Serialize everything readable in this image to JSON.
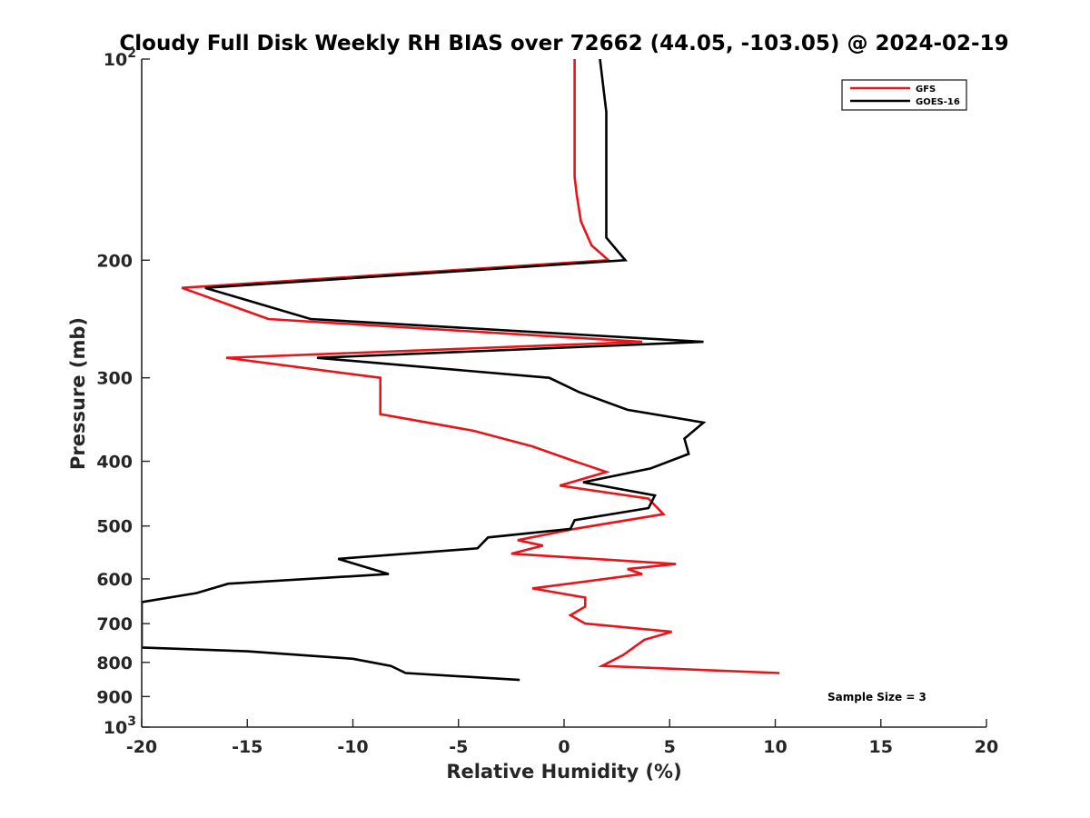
{
  "chart_data": {
    "type": "line",
    "title": "Cloudy Full Disk Weekly RH BIAS over 72662 (44.05, -103.05) @ 2024-02-19",
    "xlabel": "Relative Humidity (%)",
    "ylabel": "Pressure (mb)",
    "xlim": [
      -20,
      20
    ],
    "ylim": [
      100,
      1000
    ],
    "y_scale": "log",
    "y_reversed": true,
    "grid": false,
    "legend_position": "top-right",
    "x_ticks": [
      "-20",
      "-15",
      "-10",
      "-5",
      "0",
      "5",
      "10",
      "15",
      "20"
    ],
    "y_ticks": [
      {
        "value": 100,
        "base": "10",
        "exp": "2"
      },
      {
        "value": 200,
        "label": "200"
      },
      {
        "value": 300,
        "label": "300"
      },
      {
        "value": 400,
        "label": "400"
      },
      {
        "value": 500,
        "label": "500"
      },
      {
        "value": 600,
        "label": "600"
      },
      {
        "value": 700,
        "label": "700"
      },
      {
        "value": 800,
        "label": "800"
      },
      {
        "value": 900,
        "label": "900"
      },
      {
        "value": 1000,
        "base": "10",
        "exp": "3"
      }
    ],
    "annotation": "Sample Size = 3",
    "series": [
      {
        "name": "GFS",
        "color": "#e8141a",
        "points": [
          [
            0.5,
            100
          ],
          [
            0.5,
            125
          ],
          [
            0.5,
            150
          ],
          [
            0.6,
            160
          ],
          [
            0.8,
            175
          ],
          [
            1.3,
            190
          ],
          [
            2.1,
            200
          ],
          [
            -18.1,
            220
          ],
          [
            -14.0,
            245
          ],
          [
            3.7,
            265
          ],
          [
            -16.0,
            280
          ],
          [
            -8.7,
            300
          ],
          [
            -8.7,
            340
          ],
          [
            -4.3,
            360
          ],
          [
            -1.5,
            380
          ],
          [
            0.5,
            400
          ],
          [
            2.0,
            415
          ],
          [
            -0.2,
            435
          ],
          [
            4.0,
            455
          ],
          [
            4.7,
            480
          ],
          [
            0.5,
            505
          ],
          [
            -2.2,
            525
          ],
          [
            -1.0,
            535
          ],
          [
            -2.5,
            550
          ],
          [
            5.3,
            570
          ],
          [
            3.0,
            580
          ],
          [
            3.7,
            590
          ],
          [
            -1.5,
            620
          ],
          [
            1.0,
            640
          ],
          [
            1.0,
            660
          ],
          [
            0.3,
            680
          ],
          [
            1.0,
            700
          ],
          [
            5.1,
            720
          ],
          [
            3.8,
            740
          ],
          [
            2.8,
            780
          ],
          [
            1.8,
            810
          ],
          [
            10.2,
            830
          ]
        ]
      },
      {
        "name": "GOES-16",
        "color": "#000000",
        "points": [
          [
            1.7,
            100
          ],
          [
            2.0,
            120
          ],
          [
            2.0,
            150
          ],
          [
            2.0,
            175
          ],
          [
            2.0,
            185
          ],
          [
            2.9,
            200
          ],
          [
            -17.0,
            220
          ],
          [
            -12.0,
            245
          ],
          [
            6.6,
            265
          ],
          [
            -11.7,
            280
          ],
          [
            -0.7,
            300
          ],
          [
            0.7,
            315
          ],
          [
            3.0,
            335
          ],
          [
            6.6,
            350
          ],
          [
            5.7,
            370
          ],
          [
            5.9,
            390
          ],
          [
            4.1,
            410
          ],
          [
            0.9,
            430
          ],
          [
            4.3,
            450
          ],
          [
            4.0,
            470
          ],
          [
            0.5,
            490
          ],
          [
            0.3,
            505
          ],
          [
            -3.6,
            520
          ],
          [
            -4.1,
            540
          ],
          [
            -10.7,
            560
          ],
          [
            -8.3,
            590
          ],
          [
            -15.9,
            610
          ],
          [
            -17.4,
            630
          ],
          [
            -20.0,
            650
          ],
          [
            -20.0,
            740
          ],
          [
            -20.0,
            760
          ],
          [
            -15.0,
            770
          ],
          [
            -10.0,
            790
          ],
          [
            -8.2,
            810
          ],
          [
            -7.5,
            830
          ],
          [
            -2.1,
            850
          ]
        ]
      }
    ]
  }
}
